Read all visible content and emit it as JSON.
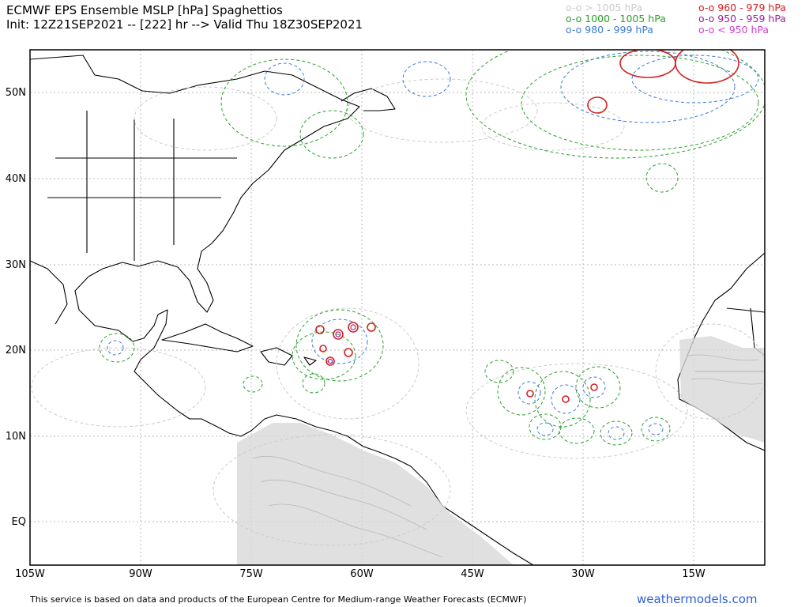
{
  "header": {
    "title": "ECMWF EPS Ensemble MSLP [hPa] Spaghettios",
    "subtitle": "Init: 12Z21SEP2021 -- [222] hr --> Valid Thu 18Z30SEP2021"
  },
  "legend": [
    {
      "text": "o-o > 1005 hPa",
      "color": "#cccccc"
    },
    {
      "text": "o-o 1000 - 1005 hPa",
      "color": "#2aa02a"
    },
    {
      "text": "o-o 980 - 999 hPa",
      "color": "#3a7bd5"
    },
    {
      "text": "o-o 960 - 979 hPa",
      "color": "#d42020"
    },
    {
      "text": "o-o 950 - 959 hPa",
      "color": "#a0209a"
    },
    {
      "text": "o-o < 950 hPa",
      "color": "#d040d0"
    }
  ],
  "axes": {
    "x_ticks": [
      "105W",
      "90W",
      "75W",
      "60W",
      "45W",
      "30W",
      "15W"
    ],
    "y_ticks": [
      "50N",
      "40N",
      "30N",
      "20N",
      "10N",
      "EQ"
    ]
  },
  "footer": {
    "disclaimer": "This service is based on data and products of the European Centre for Medium-range Weather Forecasts (ECMWF)",
    "brand": "weathermodels.com"
  }
}
